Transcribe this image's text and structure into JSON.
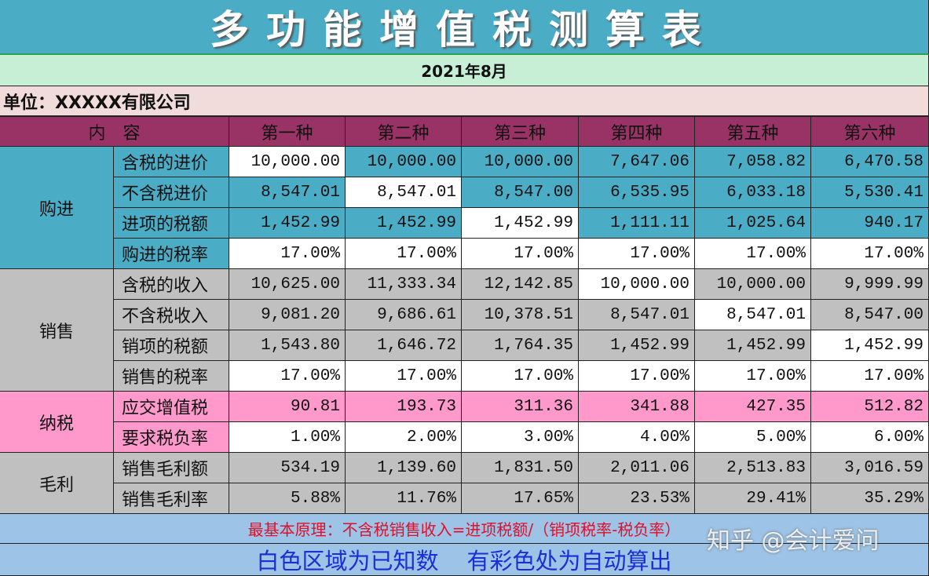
{
  "title": "多功能增值税测算表",
  "date": "2021年8月",
  "unit": "单位：XXXXX有限公司",
  "table": {
    "header": [
      "内　容",
      "第一种",
      "第二种",
      "第三种",
      "第四种",
      "第五种",
      "第六种"
    ],
    "groups": [
      {
        "name": "购进",
        "rows": [
          {
            "label": "含税的进价",
            "cells": [
              "10,000.00",
              "10,000.00",
              "10,000.00",
              "7,647.06",
              "7,058.82",
              "6,470.58"
            ]
          },
          {
            "label": "不含税进价",
            "cells": [
              "8,547.01",
              "8,547.01",
              "8,547.00",
              "6,535.95",
              "6,033.18",
              "5,530.41"
            ]
          },
          {
            "label": "进项的税额",
            "cells": [
              "1,452.99",
              "1,452.99",
              "1,452.99",
              "1,111.11",
              "1,025.64",
              "940.17"
            ]
          },
          {
            "label": "购进的税率",
            "cells": [
              "17.00%",
              "17.00%",
              "17.00%",
              "17.00%",
              "17.00%",
              "17.00%"
            ]
          }
        ]
      },
      {
        "name": "销售",
        "rows": [
          {
            "label": "含税的收入",
            "cells": [
              "10,625.00",
              "11,333.34",
              "12,142.85",
              "10,000.00",
              "10,000.00",
              "9,999.99"
            ]
          },
          {
            "label": "不含税收入",
            "cells": [
              "9,081.20",
              "9,686.61",
              "10,378.51",
              "8,547.01",
              "8,547.01",
              "8,547.00"
            ]
          },
          {
            "label": "销项的税额",
            "cells": [
              "1,543.80",
              "1,646.72",
              "1,764.35",
              "1,452.99",
              "1,452.99",
              "1,452.99"
            ]
          },
          {
            "label": "销售的税率",
            "cells": [
              "17.00%",
              "17.00%",
              "17.00%",
              "17.00%",
              "17.00%",
              "17.00%"
            ]
          }
        ]
      },
      {
        "name": "纳税",
        "rows": [
          {
            "label": "应交增值税",
            "cells": [
              "90.81",
              "193.73",
              "311.36",
              "341.88",
              "427.35",
              "512.82"
            ]
          },
          {
            "label": "要求税负率",
            "cells": [
              "1.00%",
              "2.00%",
              "3.00%",
              "4.00%",
              "5.00%",
              "6.00%"
            ]
          }
        ]
      },
      {
        "name": "毛利",
        "rows": [
          {
            "label": "销售毛利额",
            "cells": [
              "534.19",
              "1,139.60",
              "1,831.50",
              "2,011.06",
              "2,513.83",
              "3,016.59"
            ]
          },
          {
            "label": "销售毛利率",
            "cells": [
              "5.88%",
              "11.76%",
              "17.65%",
              "23.53%",
              "29.41%",
              "35.29%"
            ]
          }
        ]
      }
    ]
  },
  "note": "最基本原理：不含税销售收入=进项税额/（销项税率-税负率）",
  "footer": [
    "白色区域为已知数",
    "有彩色处为自动算出"
  ],
  "watermark": "知乎 @会计爱问"
}
